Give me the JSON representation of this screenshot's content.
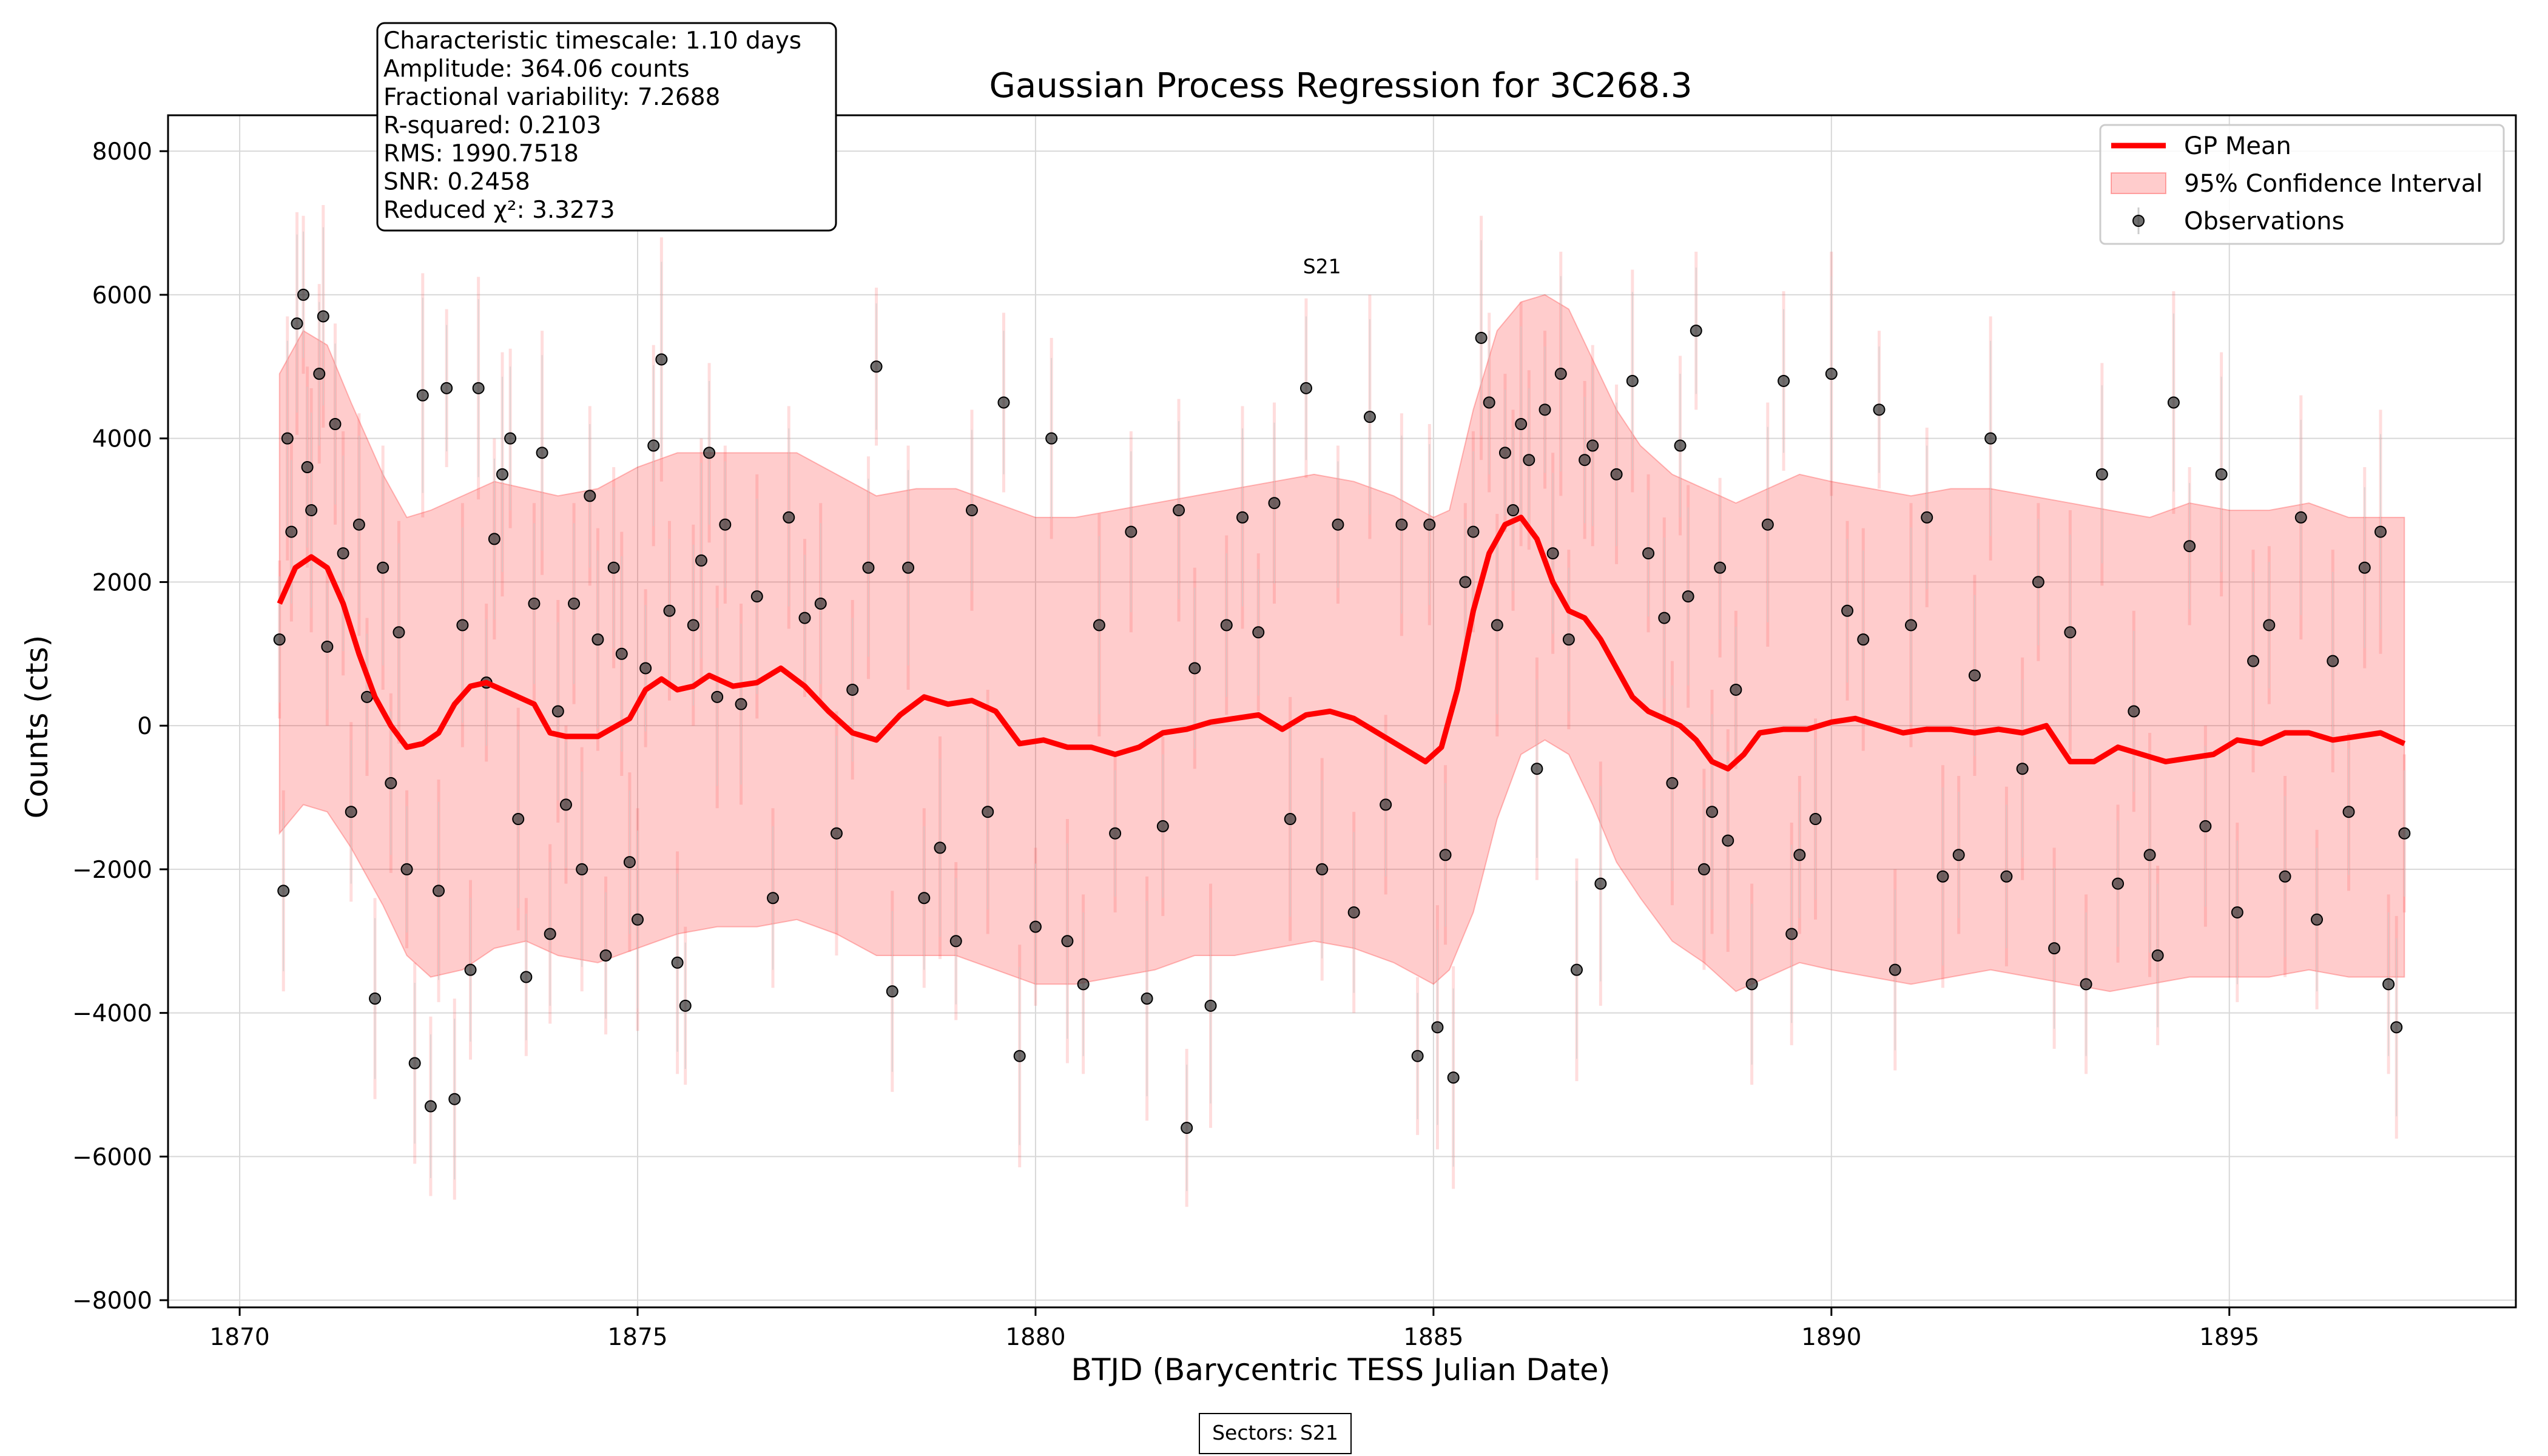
{
  "chart_data": {
    "type": "line",
    "title": "Gaussian Process Regression for 3C268.3",
    "xlabel": "BTJD (Barycentric TESS Julian Date)",
    "ylabel": "Counts (cts)",
    "xlim": [
      1869.1,
      1898.6
    ],
    "ylim": [
      -8100,
      8500
    ],
    "xticks": [
      1870,
      1875,
      1880,
      1885,
      1890,
      1895
    ],
    "yticks": [
      -8000,
      -6000,
      -4000,
      -2000,
      0,
      2000,
      4000,
      6000,
      8000
    ],
    "xtick_labels": [
      "1870",
      "1875",
      "1880",
      "1885",
      "1890",
      "1895"
    ],
    "ytick_labels": [
      "−8000",
      "−6000",
      "−4000",
      "−2000",
      "0",
      "2000",
      "4000",
      "6000",
      "8000"
    ],
    "grid": true,
    "legend_position": "top-right",
    "stats_box": [
      "Characteristic timescale: 1.10 days",
      "Amplitude: 364.06 counts",
      "Fractional variability: 7.2688",
      "R-squared: 0.2103",
      "RMS: 1990.7518",
      "SNR: 0.2458",
      "Reduced χ²: 3.3273"
    ],
    "sector_annotation": {
      "label": "S21",
      "x": 1883.6,
      "y": 6400
    },
    "footer_text": "Sectors: S21",
    "gp_mean": {
      "name": "GP Mean",
      "color": "#ff0000",
      "x": [
        1870.5,
        1870.7,
        1870.9,
        1871.1,
        1871.3,
        1871.5,
        1871.7,
        1871.9,
        1872.1,
        1872.3,
        1872.5,
        1872.7,
        1872.9,
        1873.1,
        1873.3,
        1873.5,
        1873.7,
        1873.9,
        1874.1,
        1874.5,
        1874.9,
        1875.1,
        1875.3,
        1875.5,
        1875.7,
        1875.9,
        1876.2,
        1876.5,
        1876.8,
        1877.1,
        1877.4,
        1877.7,
        1878.0,
        1878.3,
        1878.6,
        1878.9,
        1879.2,
        1879.5,
        1879.8,
        1880.1,
        1880.4,
        1880.7,
        1881.0,
        1881.3,
        1881.6,
        1881.9,
        1882.2,
        1882.5,
        1882.8,
        1883.1,
        1883.4,
        1883.7,
        1884.0,
        1884.3,
        1884.6,
        1884.9,
        1885.1,
        1885.3,
        1885.5,
        1885.7,
        1885.9,
        1886.1,
        1886.3,
        1886.5,
        1886.7,
        1886.9,
        1887.1,
        1887.3,
        1887.5,
        1887.7,
        1887.9,
        1888.1,
        1888.3,
        1888.5,
        1888.7,
        1888.9,
        1889.1,
        1889.4,
        1889.7,
        1890.0,
        1890.3,
        1890.6,
        1890.9,
        1891.2,
        1891.5,
        1891.8,
        1892.1,
        1892.4,
        1892.7,
        1893.0,
        1893.3,
        1893.6,
        1893.9,
        1894.2,
        1894.5,
        1894.8,
        1895.1,
        1895.4,
        1895.7,
        1896.0,
        1896.3,
        1896.6,
        1896.9,
        1897.2
      ],
      "y": [
        1700,
        2200,
        2350,
        2200,
        1700,
        1000,
        400,
        0,
        -300,
        -250,
        -100,
        300,
        550,
        600,
        500,
        400,
        300,
        -100,
        -150,
        -150,
        100,
        500,
        650,
        500,
        550,
        700,
        550,
        600,
        800,
        550,
        200,
        -100,
        -200,
        150,
        400,
        300,
        350,
        200,
        -250,
        -200,
        -300,
        -300,
        -400,
        -300,
        -100,
        -50,
        50,
        100,
        150,
        -50,
        150,
        200,
        100,
        -100,
        -300,
        -500,
        -300,
        500,
        1600,
        2400,
        2800,
        2900,
        2600,
        2000,
        1600,
        1500,
        1200,
        800,
        400,
        200,
        100,
        0,
        -200,
        -500,
        -600,
        -400,
        -100,
        -50,
        -50,
        50,
        100,
        0,
        -100,
        -50,
        -50,
        -100,
        -50,
        -100,
        0,
        -500,
        -500,
        -300,
        -400,
        -500,
        -450,
        -400,
        -200,
        -250,
        -100,
        -100,
        -200,
        -150,
        -100,
        -250
      ]
    },
    "confidence_interval": {
      "name": "95% Confidence Interval",
      "color": "#ff0000",
      "opacity": 0.2,
      "x": [
        1870.5,
        1870.8,
        1871.1,
        1871.4,
        1871.8,
        1872.1,
        1872.4,
        1872.8,
        1873.2,
        1873.6,
        1874.0,
        1874.5,
        1875.0,
        1875.5,
        1876.0,
        1876.5,
        1877.0,
        1877.5,
        1878.0,
        1878.5,
        1879.0,
        1879.5,
        1880.0,
        1880.5,
        1881.0,
        1881.5,
        1882.0,
        1882.5,
        1883.0,
        1883.5,
        1884.0,
        1884.5,
        1885.0,
        1885.2,
        1885.5,
        1885.8,
        1886.1,
        1886.4,
        1886.7,
        1887.0,
        1887.3,
        1887.6,
        1888.0,
        1888.4,
        1888.8,
        1889.2,
        1889.6,
        1890.0,
        1890.5,
        1891.0,
        1891.5,
        1892.0,
        1892.5,
        1893.0,
        1893.5,
        1894.0,
        1894.5,
        1895.0,
        1895.5,
        1896.0,
        1896.5,
        1897.0,
        1897.2
      ],
      "upper": [
        4900,
        5500,
        5300,
        4500,
        3500,
        2900,
        3000,
        3200,
        3400,
        3300,
        3200,
        3300,
        3600,
        3800,
        3800,
        3800,
        3800,
        3500,
        3200,
        3300,
        3300,
        3100,
        2900,
        2900,
        3000,
        3100,
        3200,
        3300,
        3400,
        3500,
        3400,
        3200,
        2900,
        3000,
        4400,
        5500,
        5900,
        6000,
        5800,
        5100,
        4400,
        3900,
        3500,
        3300,
        3100,
        3300,
        3500,
        3400,
        3300,
        3200,
        3300,
        3300,
        3200,
        3100,
        3000,
        2900,
        3100,
        3000,
        3000,
        3100,
        2900,
        2900,
        2900
      ],
      "lower": [
        -1500,
        -1100,
        -1200,
        -1700,
        -2500,
        -3200,
        -3500,
        -3400,
        -3100,
        -3000,
        -3200,
        -3300,
        -3100,
        -2900,
        -2800,
        -2800,
        -2700,
        -2900,
        -3200,
        -3200,
        -3200,
        -3400,
        -3600,
        -3600,
        -3500,
        -3400,
        -3200,
        -3200,
        -3100,
        -3000,
        -3100,
        -3300,
        -3600,
        -3400,
        -2600,
        -1300,
        -400,
        -200,
        -400,
        -1100,
        -1900,
        -2400,
        -3000,
        -3300,
        -3700,
        -3500,
        -3300,
        -3400,
        -3500,
        -3600,
        -3500,
        -3400,
        -3500,
        -3600,
        -3700,
        -3600,
        -3500,
        -3500,
        -3500,
        -3400,
        -3500,
        -3500,
        -3500
      ]
    },
    "observations": {
      "name": "Observations",
      "color": "#333333",
      "x": [
        1870.5,
        1870.55,
        1870.6,
        1870.65,
        1870.72,
        1870.8,
        1870.85,
        1870.9,
        1871.0,
        1871.05,
        1871.1,
        1871.2,
        1871.3,
        1871.4,
        1871.5,
        1871.6,
        1871.7,
        1871.8,
        1871.9,
        1872.0,
        1872.1,
        1872.2,
        1872.3,
        1872.4,
        1872.5,
        1872.6,
        1872.7,
        1872.8,
        1872.9,
        1873.0,
        1873.1,
        1873.2,
        1873.3,
        1873.4,
        1873.5,
        1873.6,
        1873.7,
        1873.8,
        1873.9,
        1874.0,
        1874.1,
        1874.2,
        1874.3,
        1874.4,
        1874.5,
        1874.6,
        1874.7,
        1874.8,
        1874.9,
        1875.0,
        1875.1,
        1875.2,
        1875.3,
        1875.4,
        1875.5,
        1875.6,
        1875.7,
        1875.8,
        1875.9,
        1876.0,
        1876.1,
        1876.3,
        1876.5,
        1876.7,
        1876.9,
        1877.1,
        1877.3,
        1877.5,
        1877.7,
        1877.9,
        1878.0,
        1878.2,
        1878.4,
        1878.6,
        1878.8,
        1879.0,
        1879.2,
        1879.4,
        1879.6,
        1879.8,
        1880.0,
        1880.2,
        1880.4,
        1880.6,
        1880.8,
        1881.0,
        1881.2,
        1881.4,
        1881.6,
        1881.8,
        1881.9,
        1882.0,
        1882.2,
        1882.4,
        1882.6,
        1882.8,
        1883.0,
        1883.2,
        1883.4,
        1883.6,
        1883.8,
        1884.0,
        1884.2,
        1884.4,
        1884.6,
        1884.8,
        1884.95,
        1885.05,
        1885.15,
        1885.25,
        1885.4,
        1885.5,
        1885.6,
        1885.7,
        1885.8,
        1885.9,
        1886.0,
        1886.1,
        1886.2,
        1886.3,
        1886.4,
        1886.5,
        1886.6,
        1886.7,
        1886.8,
        1886.9,
        1887.0,
        1887.1,
        1887.3,
        1887.5,
        1887.7,
        1887.9,
        1888.0,
        1888.1,
        1888.2,
        1888.3,
        1888.4,
        1888.5,
        1888.6,
        1888.7,
        1888.8,
        1889.0,
        1889.2,
        1889.4,
        1889.5,
        1889.6,
        1889.8,
        1890.0,
        1890.2,
        1890.4,
        1890.6,
        1890.8,
        1891.0,
        1891.2,
        1891.4,
        1891.6,
        1891.8,
        1892.0,
        1892.2,
        1892.4,
        1892.6,
        1892.8,
        1893.0,
        1893.2,
        1893.4,
        1893.6,
        1893.8,
        1894.0,
        1894.1,
        1894.3,
        1894.5,
        1894.7,
        1894.9,
        1895.1,
        1895.3,
        1895.5,
        1895.7,
        1895.9,
        1896.1,
        1896.3,
        1896.5,
        1896.7,
        1896.9,
        1897.0,
        1897.1,
        1897.2
      ],
      "y": [
        1200,
        -2300,
        4000,
        2700,
        5600,
        6000,
        3600,
        3000,
        4900,
        5700,
        1100,
        4200,
        2400,
        -1200,
        2800,
        400,
        -3800,
        2200,
        -800,
        1300,
        -2000,
        -4700,
        4600,
        -5300,
        -2300,
        4700,
        -5200,
        1400,
        -3400,
        4700,
        600,
        2600,
        3500,
        4000,
        -1300,
        -3500,
        1700,
        3800,
        -2900,
        200,
        -1100,
        1700,
        -2000,
        3200,
        1200,
        -3200,
        2200,
        1000,
        -1900,
        -2700,
        800,
        3900,
        5100,
        1600,
        -3300,
        -3900,
        1400,
        2300,
        3800,
        400,
        2800,
        300,
        1800,
        -2400,
        2900,
        1500,
        1700,
        -1500,
        500,
        2200,
        5000,
        -3700,
        2200,
        -2400,
        -1700,
        -3000,
        3000,
        -1200,
        4500,
        -4600,
        -2800,
        4000,
        -3000,
        -3600,
        1400,
        -1500,
        2700,
        -3800,
        -1400,
        3000,
        -5600,
        800,
        -3900,
        1400,
        2900,
        1300,
        3100,
        -1300,
        4700,
        -2000,
        2800,
        -2600,
        4300,
        -1100,
        2800,
        -4600,
        2800,
        -4200,
        -1800,
        -4900,
        2000,
        2700,
        5400,
        4500,
        1400,
        3800,
        3000,
        4200,
        3700,
        -600,
        4400,
        2400,
        4900,
        1200,
        -3400,
        3700,
        3900,
        -2200,
        3500,
        4800,
        2400,
        1500,
        -800,
        3900,
        1800,
        5500,
        -2000,
        -1200,
        2200,
        -1600,
        500,
        -3600,
        2800,
        4800,
        -2900,
        -1800,
        -1300,
        4900,
        1600,
        1200,
        4400,
        -3400,
        1400,
        2900,
        -2100,
        -1800,
        700,
        4000,
        -2100,
        -600,
        2000,
        -3100,
        1300,
        -3600,
        3500,
        -2200,
        200,
        -1800,
        -3200,
        4500,
        2500,
        -1400,
        3500,
        -2600,
        900,
        1400,
        -2100,
        2900,
        -2700,
        900,
        -1200,
        2200,
        2700,
        -3600,
        -4200,
        -1500
      ]
    }
  }
}
